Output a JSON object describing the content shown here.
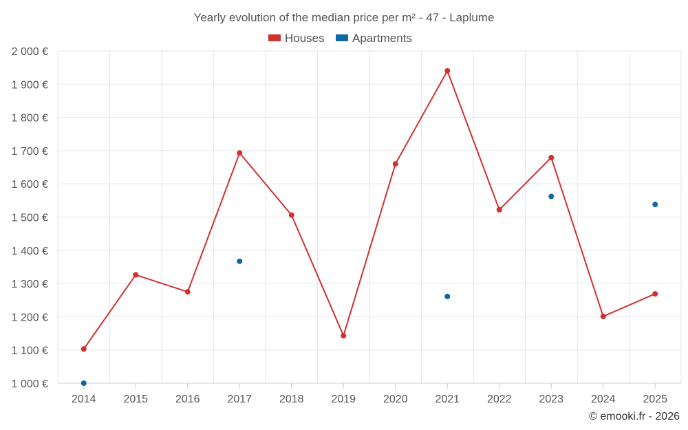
{
  "chart_data": {
    "type": "line",
    "title": "Yearly evolution of the median price per m² - 47 - Laplume",
    "x": [
      "2014",
      "2015",
      "2016",
      "2017",
      "2018",
      "2019",
      "2020",
      "2021",
      "2022",
      "2023",
      "2024",
      "2025"
    ],
    "ylim": [
      1000,
      2000
    ],
    "yticks": [
      1000,
      1100,
      1200,
      1300,
      1400,
      1500,
      1600,
      1700,
      1800,
      1900,
      2000
    ],
    "ytick_labels": [
      "1 000 €",
      "1 100 €",
      "1 200 €",
      "1 300 €",
      "1 400 €",
      "1 500 €",
      "1 600 €",
      "1 700 €",
      "1 800 €",
      "1 900 €",
      "2 000 €"
    ],
    "grid": true,
    "legend_position": "top-center",
    "series": [
      {
        "name": "Houses",
        "color": "#d32f2f",
        "mode": "line+markers",
        "values": [
          1103,
          1326,
          1275,
          1693,
          1506,
          1143,
          1660,
          1940,
          1522,
          1679,
          1201,
          1269
        ]
      },
      {
        "name": "Apartments",
        "color": "#0d6aa0",
        "mode": "markers",
        "values": [
          1000,
          null,
          null,
          1367,
          null,
          null,
          null,
          1261,
          null,
          1562,
          null,
          1538
        ]
      }
    ]
  },
  "credit": "© emooki.fr - 2026"
}
